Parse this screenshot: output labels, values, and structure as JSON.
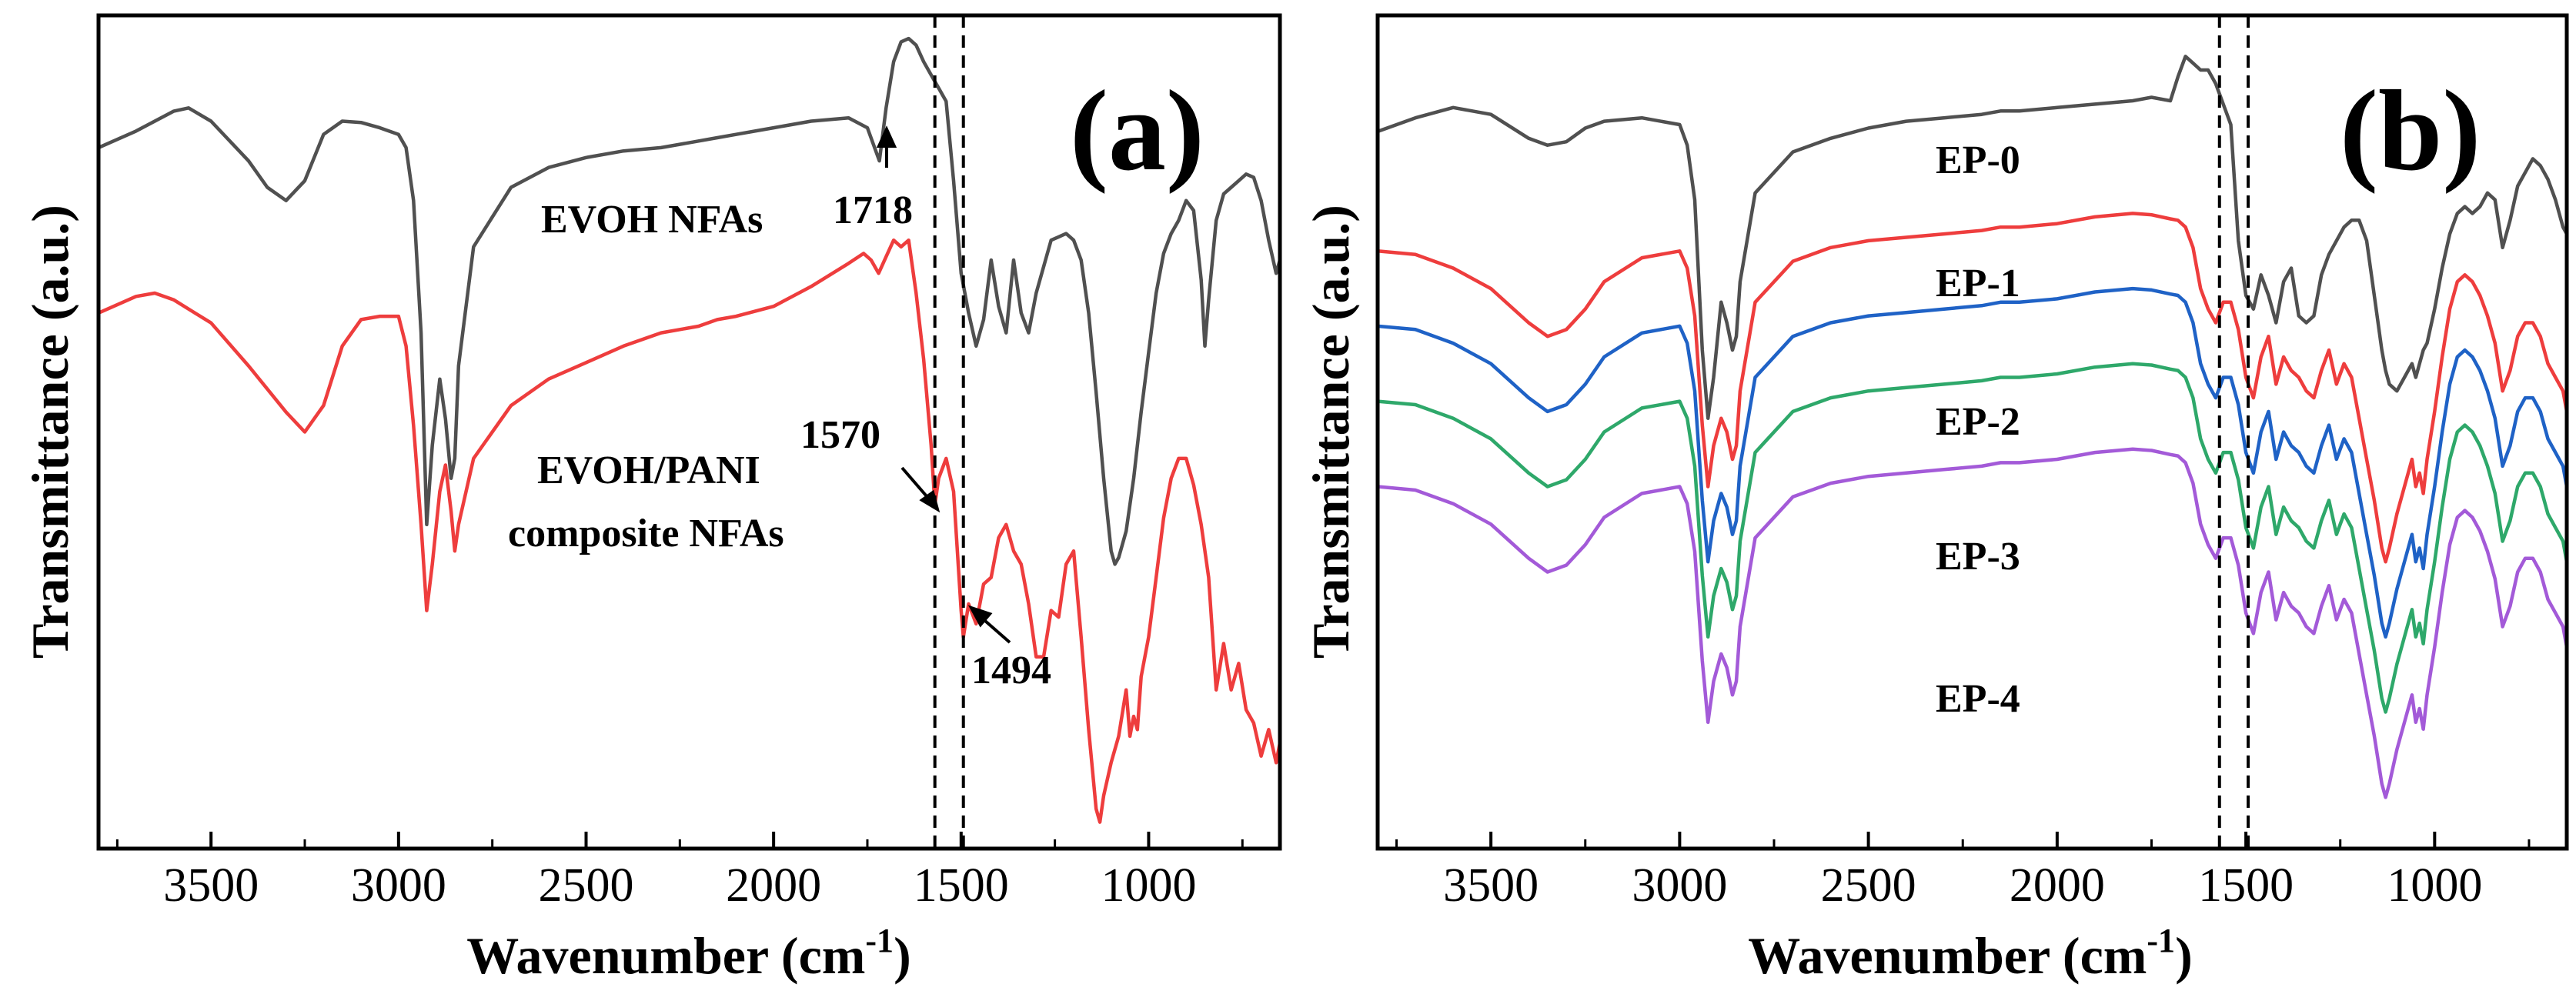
{
  "chart_data": [
    {
      "type": "line",
      "panel_label": "(a)",
      "xlabel": "Wavenumber (cm⁻¹)",
      "ylabel": "Transmittance (a.u.)",
      "xlim": [
        3800,
        650
      ],
      "x_reversed": true,
      "x_ticks": [
        3500,
        3000,
        2500,
        2000,
        1500,
        1000
      ],
      "y_tick_labels_shown": false,
      "grid": false,
      "legend": "none",
      "series": [
        {
          "name": "EVOH NFAs",
          "color": "#505050",
          "x": [
            3800,
            3700,
            3600,
            3560,
            3500,
            3400,
            3350,
            3300,
            3250,
            3200,
            3150,
            3100,
            3050,
            3000,
            2980,
            2960,
            2940,
            2925,
            2910,
            2890,
            2875,
            2860,
            2850,
            2840,
            2800,
            2700,
            2600,
            2500,
            2400,
            2300,
            2200,
            2150,
            2100,
            2000,
            1900,
            1800,
            1750,
            1718,
            1700,
            1680,
            1660,
            1640,
            1620,
            1600,
            1580,
            1560,
            1540,
            1520,
            1500,
            1480,
            1460,
            1440,
            1420,
            1400,
            1380,
            1360,
            1340,
            1320,
            1300,
            1280,
            1260,
            1240,
            1220,
            1200,
            1180,
            1160,
            1140,
            1120,
            1100,
            1090,
            1080,
            1060,
            1040,
            1020,
            1000,
            980,
            960,
            940,
            920,
            900,
            880,
            860,
            850,
            840,
            820,
            800,
            780,
            760,
            740,
            720,
            700,
            680,
            660,
            650
          ],
          "y": [
            8.3,
            8.55,
            8.85,
            8.9,
            8.7,
            8.1,
            7.7,
            7.5,
            7.8,
            8.5,
            8.7,
            8.68,
            8.6,
            8.5,
            8.3,
            7.5,
            5.5,
            2.6,
            3.8,
            4.8,
            4.2,
            3.3,
            3.6,
            5.0,
            6.8,
            7.7,
            8.0,
            8.15,
            8.25,
            8.3,
            8.4,
            8.45,
            8.5,
            8.6,
            8.7,
            8.75,
            8.6,
            8.1,
            8.9,
            9.6,
            9.9,
            9.95,
            9.85,
            9.6,
            9.4,
            9.2,
            9.0,
            7.8,
            6.4,
            5.8,
            5.3,
            5.7,
            6.6,
            5.9,
            5.5,
            6.6,
            5.8,
            5.5,
            6.1,
            6.5,
            6.9,
            6.95,
            7.0,
            6.9,
            6.6,
            5.8,
            4.6,
            3.3,
            2.2,
            2.0,
            2.1,
            2.5,
            3.3,
            4.3,
            5.2,
            6.1,
            6.7,
            7.0,
            7.2,
            7.5,
            7.35,
            6.3,
            5.3,
            6.0,
            7.2,
            7.6,
            7.7,
            7.8,
            7.9,
            7.85,
            7.5,
            6.9,
            6.4,
            6.6
          ]
        },
        {
          "name": "EVOH/PANI composite NFAs",
          "color": "#ee3d3d",
          "x": [
            3800,
            3700,
            3650,
            3600,
            3500,
            3400,
            3300,
            3250,
            3200,
            3150,
            3100,
            3050,
            3000,
            2980,
            2960,
            2940,
            2925,
            2910,
            2890,
            2875,
            2860,
            2850,
            2840,
            2800,
            2700,
            2600,
            2500,
            2400,
            2300,
            2200,
            2150,
            2100,
            2000,
            1900,
            1800,
            1760,
            1740,
            1720,
            1700,
            1680,
            1660,
            1640,
            1620,
            1600,
            1580,
            1570,
            1560,
            1540,
            1520,
            1500,
            1494,
            1480,
            1460,
            1440,
            1420,
            1400,
            1380,
            1360,
            1340,
            1320,
            1300,
            1280,
            1260,
            1240,
            1220,
            1200,
            1180,
            1160,
            1140,
            1130,
            1120,
            1100,
            1080,
            1060,
            1050,
            1040,
            1030,
            1020,
            1000,
            980,
            960,
            940,
            920,
            900,
            880,
            860,
            840,
            820,
            800,
            780,
            760,
            740,
            720,
            700,
            680,
            660,
            650
          ],
          "y": [
            5.8,
            6.05,
            6.1,
            6.0,
            5.65,
            5.0,
            4.3,
            4.0,
            4.4,
            5.3,
            5.7,
            5.75,
            5.75,
            5.3,
            4.1,
            2.6,
            1.3,
            2.0,
            3.1,
            3.5,
            2.8,
            2.2,
            2.6,
            3.6,
            4.4,
            4.8,
            5.05,
            5.3,
            5.5,
            5.6,
            5.7,
            5.75,
            5.9,
            6.2,
            6.55,
            6.7,
            6.6,
            6.4,
            6.65,
            6.9,
            6.8,
            6.9,
            6.1,
            5.1,
            3.8,
            2.9,
            3.3,
            3.6,
            3.1,
            1.3,
            0.9,
            1.4,
            1.1,
            1.7,
            1.8,
            2.4,
            2.6,
            2.2,
            2.0,
            1.4,
            0.6,
            0.6,
            1.3,
            1.2,
            2.0,
            2.2,
            0.9,
            -0.5,
            -1.7,
            -1.9,
            -1.5,
            -1.0,
            -0.6,
            0.1,
            -0.6,
            -0.3,
            -0.5,
            0.3,
            0.9,
            1.8,
            2.7,
            3.3,
            3.6,
            3.6,
            3.2,
            2.6,
            1.8,
            0.1,
            0.8,
            0.1,
            0.5,
            -0.2,
            -0.4,
            -0.9,
            -0.5,
            -1.0,
            -0.7
          ]
        }
      ],
      "annotations": [
        {
          "text": "EVOH NFAs",
          "kind": "series-label"
        },
        {
          "text": "EVOH/PANI",
          "kind": "series-label"
        },
        {
          "text": "composite NFAs",
          "kind": "series-label"
        },
        {
          "text": "1718",
          "kind": "peak"
        },
        {
          "text": "1570",
          "kind": "peak"
        },
        {
          "text": "1494",
          "kind": "peak"
        }
      ],
      "vlines": [
        1570,
        1494
      ]
    },
    {
      "type": "line",
      "panel_label": "(b)",
      "xlabel": "Wavenumber (cm⁻¹)",
      "ylabel": "Transmittance (a.u.)",
      "xlim": [
        3800,
        650
      ],
      "x_reversed": true,
      "x_ticks": [
        3500,
        3000,
        2500,
        2000,
        1500,
        1000
      ],
      "y_tick_labels_shown": false,
      "grid": false,
      "legend": "none",
      "base_x": [
        3800,
        3700,
        3600,
        3500,
        3400,
        3350,
        3300,
        3250,
        3200,
        3100,
        3000,
        2980,
        2960,
        2940,
        2925,
        2910,
        2890,
        2875,
        2860,
        2850,
        2840,
        2800,
        2700,
        2600,
        2500,
        2400,
        2300,
        2200,
        2150,
        2100,
        2000,
        1900,
        1800,
        1750,
        1700,
        1680,
        1660,
        1640,
        1620,
        1600,
        1580,
        1560,
        1540,
        1520,
        1500,
        1480,
        1460,
        1440,
        1420,
        1400,
        1380,
        1360,
        1340,
        1320,
        1300,
        1280,
        1260,
        1240,
        1220,
        1200,
        1180,
        1160,
        1140,
        1130,
        1120,
        1100,
        1080,
        1060,
        1050,
        1040,
        1030,
        1020,
        1000,
        980,
        960,
        940,
        920,
        900,
        880,
        860,
        840,
        820,
        800,
        780,
        760,
        740,
        720,
        700,
        680,
        660,
        650
      ],
      "series": [
        {
          "name": "EP-0",
          "color": "#505050",
          "y": [
            8.8,
            9.0,
            9.15,
            9.05,
            8.7,
            8.6,
            8.65,
            8.85,
            8.95,
            9.0,
            8.9,
            8.6,
            7.8,
            5.6,
            4.6,
            5.2,
            6.3,
            6.0,
            5.6,
            5.8,
            6.6,
            7.9,
            8.5,
            8.7,
            8.85,
            8.95,
            9.0,
            9.05,
            9.1,
            9.1,
            9.15,
            9.2,
            9.25,
            9.3,
            9.25,
            9.6,
            9.9,
            9.8,
            9.7,
            9.7,
            9.5,
            9.2,
            8.9,
            7.2,
            6.4,
            6.2,
            6.7,
            6.4,
            6.0,
            6.6,
            6.8,
            6.1,
            6.0,
            6.1,
            6.7,
            7.0,
            7.2,
            7.4,
            7.5,
            7.5,
            7.2,
            6.4,
            5.6,
            5.3,
            5.1,
            5.0,
            5.2,
            5.4,
            5.2,
            5.4,
            5.6,
            5.7,
            6.2,
            6.8,
            7.3,
            7.6,
            7.7,
            7.6,
            7.7,
            7.9,
            7.8,
            7.1,
            7.5,
            8.0,
            8.2,
            8.4,
            8.3,
            8.1,
            7.8,
            7.4,
            7.3
          ]
        },
        {
          "name": "EP-1",
          "color": "#ee3d3d",
          "y": [
            7.05,
            7.0,
            6.8,
            6.5,
            6.0,
            5.8,
            5.9,
            6.2,
            6.6,
            6.95,
            7.05,
            6.8,
            6.1,
            4.5,
            3.6,
            4.2,
            4.6,
            4.4,
            4.0,
            4.2,
            5.0,
            6.3,
            6.9,
            7.1,
            7.2,
            7.25,
            7.3,
            7.35,
            7.4,
            7.4,
            7.45,
            7.55,
            7.6,
            7.58,
            7.52,
            7.5,
            7.4,
            7.1,
            6.5,
            6.2,
            6.0,
            6.3,
            6.3,
            5.9,
            5.2,
            4.9,
            5.5,
            5.8,
            5.1,
            5.5,
            5.3,
            5.2,
            5.0,
            4.9,
            5.3,
            5.6,
            5.1,
            5.4,
            5.2,
            4.6,
            4.0,
            3.4,
            2.7,
            2.5,
            2.7,
            3.2,
            3.6,
            4.0,
            3.6,
            3.8,
            3.5,
            4.0,
            4.7,
            5.5,
            6.2,
            6.6,
            6.7,
            6.6,
            6.4,
            6.1,
            5.7,
            5.0,
            5.3,
            5.8,
            6.0,
            6.0,
            5.8,
            5.4,
            5.2,
            5.0,
            4.7
          ]
        },
        {
          "name": "EP-2",
          "color": "#1f62c6",
          "y": [
            5.95,
            5.9,
            5.7,
            5.4,
            4.9,
            4.7,
            4.8,
            5.1,
            5.5,
            5.85,
            5.95,
            5.7,
            5.0,
            3.4,
            2.5,
            3.1,
            3.5,
            3.3,
            2.9,
            3.1,
            3.9,
            5.2,
            5.8,
            6.0,
            6.1,
            6.15,
            6.2,
            6.25,
            6.3,
            6.3,
            6.35,
            6.45,
            6.5,
            6.48,
            6.42,
            6.4,
            6.3,
            6.0,
            5.4,
            5.1,
            4.9,
            5.2,
            5.2,
            4.8,
            4.1,
            3.8,
            4.4,
            4.7,
            4.0,
            4.4,
            4.2,
            4.1,
            3.9,
            3.8,
            4.2,
            4.5,
            4.0,
            4.3,
            4.1,
            3.5,
            2.9,
            2.3,
            1.6,
            1.4,
            1.6,
            2.1,
            2.5,
            2.9,
            2.5,
            2.7,
            2.4,
            2.9,
            3.6,
            4.4,
            5.1,
            5.5,
            5.6,
            5.5,
            5.3,
            5.0,
            4.6,
            3.9,
            4.2,
            4.7,
            4.9,
            4.9,
            4.7,
            4.3,
            4.1,
            3.9,
            3.6
          ]
        },
        {
          "name": "EP-3",
          "color": "#2ea86a",
          "y": [
            4.85,
            4.8,
            4.6,
            4.3,
            3.8,
            3.6,
            3.7,
            4.0,
            4.4,
            4.75,
            4.85,
            4.6,
            3.9,
            2.3,
            1.4,
            2.0,
            2.4,
            2.2,
            1.8,
            2.0,
            2.8,
            4.1,
            4.7,
            4.9,
            5.0,
            5.05,
            5.1,
            5.15,
            5.2,
            5.2,
            5.25,
            5.35,
            5.4,
            5.38,
            5.32,
            5.3,
            5.2,
            4.9,
            4.3,
            4.0,
            3.8,
            4.1,
            4.1,
            3.7,
            3.0,
            2.7,
            3.3,
            3.6,
            2.9,
            3.3,
            3.1,
            3.0,
            2.8,
            2.7,
            3.1,
            3.4,
            2.9,
            3.2,
            3.0,
            2.4,
            1.8,
            1.2,
            0.5,
            0.3,
            0.5,
            1.0,
            1.4,
            1.8,
            1.4,
            1.6,
            1.3,
            1.8,
            2.5,
            3.3,
            4.0,
            4.4,
            4.5,
            4.4,
            4.2,
            3.9,
            3.5,
            2.8,
            3.1,
            3.6,
            3.8,
            3.8,
            3.6,
            3.2,
            3.0,
            2.8,
            2.5
          ]
        },
        {
          "name": "EP-4",
          "color": "#a35ad8",
          "y": [
            3.6,
            3.55,
            3.35,
            3.05,
            2.55,
            2.35,
            2.45,
            2.75,
            3.15,
            3.5,
            3.6,
            3.35,
            2.65,
            1.05,
            0.15,
            0.75,
            1.15,
            0.95,
            0.55,
            0.75,
            1.55,
            2.85,
            3.45,
            3.65,
            3.75,
            3.8,
            3.85,
            3.9,
            3.95,
            3.95,
            4.0,
            4.1,
            4.15,
            4.13,
            4.07,
            4.05,
            3.95,
            3.65,
            3.05,
            2.75,
            2.55,
            2.85,
            2.85,
            2.45,
            1.75,
            1.45,
            2.05,
            2.35,
            1.65,
            2.05,
            1.85,
            1.75,
            1.55,
            1.45,
            1.85,
            2.15,
            1.65,
            1.95,
            1.75,
            1.15,
            0.55,
            -0.05,
            -0.75,
            -0.95,
            -0.75,
            -0.25,
            0.15,
            0.55,
            0.15,
            0.35,
            0.05,
            0.55,
            1.25,
            2.05,
            2.75,
            3.15,
            3.25,
            3.15,
            2.95,
            2.65,
            2.25,
            1.55,
            1.85,
            2.35,
            2.55,
            2.55,
            2.35,
            1.95,
            1.75,
            1.55,
            1.25
          ]
        }
      ],
      "vlines": [
        1570,
        1494
      ]
    }
  ]
}
